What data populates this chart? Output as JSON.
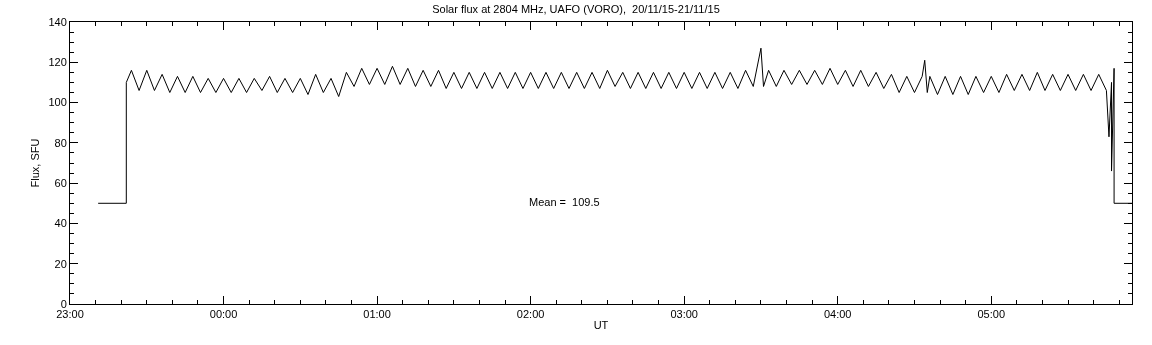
{
  "chart_data": {
    "type": "line",
    "title": "Solar flux at 2804 MHz, UAFO (VORO),  20/11/15-21/11/15",
    "xlabel": "UT",
    "ylabel": "Flux, SFU",
    "annotations": [
      "Mean =  109.5"
    ],
    "xlim": [
      "--11-20T23:00",
      "--11-21T05:55"
    ],
    "ylim": [
      0,
      140
    ],
    "xticks": [
      {
        "value": "--11-20T23:00",
        "label": "23:00"
      },
      {
        "value": "--11-21T00:00",
        "label": "00:00"
      },
      {
        "value": "--11-21T01:00",
        "label": "01:00"
      },
      {
        "value": "--11-21T02:00",
        "label": "02:00"
      },
      {
        "value": "--11-21T03:00",
        "label": "03:00"
      },
      {
        "value": "--11-21T04:00",
        "label": "04:00"
      },
      {
        "value": "--11-21T05:00",
        "label": "05:00"
      }
    ],
    "yticks": [
      0,
      20,
      40,
      60,
      80,
      100,
      120,
      140
    ],
    "marker": "none",
    "line_style": "solid",
    "series": [
      {
        "color": "#000000",
        "x": [
          "--11-20T23:11",
          "--11-20T23:22",
          "--11-20T23:22",
          "--11-20T23:24",
          "--11-20T23:27",
          "--11-20T23:30",
          "--11-20T23:33",
          "--11-20T23:36",
          "--11-20T23:39",
          "--11-20T23:42",
          "--11-20T23:45",
          "--11-20T23:48",
          "--11-20T23:51",
          "--11-20T23:54",
          "--11-20T23:57",
          "--11-21T00:00",
          "--11-21T00:03",
          "--11-21T00:06",
          "--11-21T00:09",
          "--11-21T00:12",
          "--11-21T00:15",
          "--11-21T00:18",
          "--11-21T00:21",
          "--11-21T00:24",
          "--11-21T00:27",
          "--11-21T00:30",
          "--11-21T00:33",
          "--11-21T00:36",
          "--11-21T00:39",
          "--11-21T00:42",
          "--11-21T00:45",
          "--11-21T00:48",
          "--11-21T00:51",
          "--11-21T00:54",
          "--11-21T00:57",
          "--11-21T01:00",
          "--11-21T01:03",
          "--11-21T01:06",
          "--11-21T01:09",
          "--11-21T01:12",
          "--11-21T01:15",
          "--11-21T01:18",
          "--11-21T01:21",
          "--11-21T01:24",
          "--11-21T01:27",
          "--11-21T01:30",
          "--11-21T01:33",
          "--11-21T01:36",
          "--11-21T01:39",
          "--11-21T01:42",
          "--11-21T01:45",
          "--11-21T01:48",
          "--11-21T01:51",
          "--11-21T01:54",
          "--11-21T01:57",
          "--11-21T02:00",
          "--11-21T02:03",
          "--11-21T02:06",
          "--11-21T02:09",
          "--11-21T02:12",
          "--11-21T02:15",
          "--11-21T02:18",
          "--11-21T02:21",
          "--11-21T02:24",
          "--11-21T02:27",
          "--11-21T02:30",
          "--11-21T02:33",
          "--11-21T02:36",
          "--11-21T02:39",
          "--11-21T02:42",
          "--11-21T02:45",
          "--11-21T02:48",
          "--11-21T02:51",
          "--11-21T02:54",
          "--11-21T02:57",
          "--11-21T03:00",
          "--11-21T03:03",
          "--11-21T03:06",
          "--11-21T03:09",
          "--11-21T03:12",
          "--11-21T03:15",
          "--11-21T03:18",
          "--11-21T03:21",
          "--11-21T03:24",
          "--11-21T03:27",
          "--11-21T03:30",
          "--11-21T03:31",
          "--11-21T03:33",
          "--11-21T03:36",
          "--11-21T03:39",
          "--11-21T03:42",
          "--11-21T03:45",
          "--11-21T03:48",
          "--11-21T03:51",
          "--11-21T03:54",
          "--11-21T03:57",
          "--11-21T04:00",
          "--11-21T04:03",
          "--11-21T04:06",
          "--11-21T04:09",
          "--11-21T04:12",
          "--11-21T04:15",
          "--11-21T04:18",
          "--11-21T04:21",
          "--11-21T04:24",
          "--11-21T04:27",
          "--11-21T04:30",
          "--11-21T04:33",
          "--11-21T04:34",
          "--11-21T04:35",
          "--11-21T04:36",
          "--11-21T04:39",
          "--11-21T04:42",
          "--11-21T04:45",
          "--11-21T04:48",
          "--11-21T04:51",
          "--11-21T04:54",
          "--11-21T04:57",
          "--11-21T05:00",
          "--11-21T05:03",
          "--11-21T05:06",
          "--11-21T05:09",
          "--11-21T05:12",
          "--11-21T05:15",
          "--11-21T05:18",
          "--11-21T05:21",
          "--11-21T05:24",
          "--11-21T05:27",
          "--11-21T05:30",
          "--11-21T05:33",
          "--11-21T05:36",
          "--11-21T05:39",
          "--11-21T05:42",
          "--11-21T05:45",
          "--11-21T05:46",
          "--11-21T05:47",
          "--11-21T05:47",
          "--11-21T05:48",
          "--11-21T05:48",
          "--11-21T05:55"
        ],
        "values": [
          50,
          50,
          110,
          116,
          106,
          116,
          106,
          114,
          105,
          113,
          105,
          113,
          105,
          112,
          105,
          112,
          105,
          112,
          105,
          112,
          106,
          113,
          105,
          112,
          105,
          112,
          104,
          114,
          105,
          112,
          103,
          115,
          108,
          117,
          109,
          117,
          109,
          118,
          109,
          117,
          108,
          116,
          108,
          116,
          107,
          115,
          107,
          115,
          107,
          115,
          107,
          115,
          107,
          115,
          107,
          115,
          107,
          115,
          107,
          115,
          107,
          115,
          107,
          115,
          107,
          116,
          108,
          115,
          107,
          115,
          107,
          115,
          107,
          115,
          107,
          115,
          107,
          115,
          107,
          115,
          107,
          115,
          107,
          116,
          108,
          127,
          108,
          116,
          108,
          116,
          109,
          116,
          109,
          116,
          109,
          117,
          109,
          116,
          108,
          116,
          108,
          115,
          107,
          114,
          105,
          113,
          105,
          113,
          121,
          105,
          113,
          104,
          113,
          104,
          113,
          104,
          113,
          105,
          113,
          105,
          114,
          106,
          114,
          106,
          115,
          106,
          114,
          106,
          114,
          106,
          114,
          106,
          114,
          106,
          83,
          110,
          66,
          117,
          50,
          50
        ]
      }
    ]
  }
}
